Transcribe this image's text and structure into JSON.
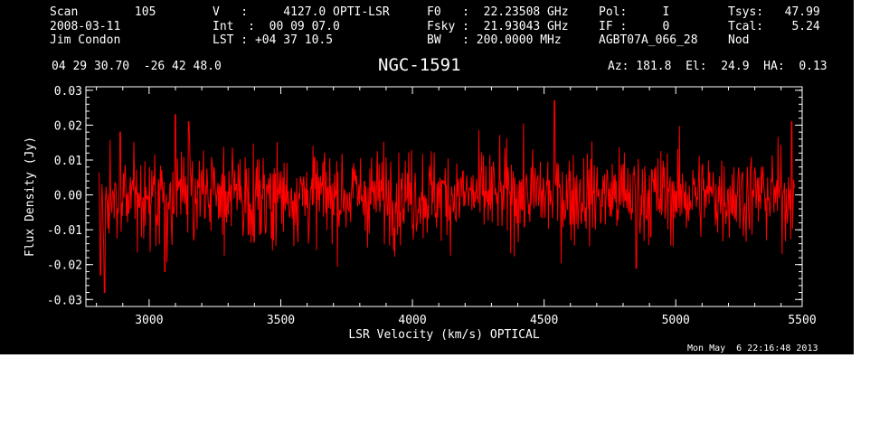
{
  "header": {
    "col1": [
      "Scan        105",
      "2008-03-11",
      "Jim Condon"
    ],
    "col2": [
      "V   :     4127.0 OPTI-LSR",
      "Int  :  00 09 07.0",
      "LST : +04 37 10.5"
    ],
    "col3": [
      "F0   :  22.23508 GHz",
      "Fsky :  21.93043 GHz",
      "BW   : 200.0000 MHz"
    ],
    "col4": [
      "Pol:     I",
      "IF :     0",
      "AGBT07A_066_28"
    ],
    "col5": [
      "Tsys:   47.99",
      "Tcal:    5.24",
      "Nod"
    ],
    "coords": "04 29 30.70  -26 42 48.0",
    "source": "NGC-1591",
    "pointing": "Az: 181.8  El:  24.9  HA:  0.13"
  },
  "footer": {
    "date": "Mon May  6 22:16:48 2013"
  },
  "colors": {
    "background": "#000000",
    "axes": "#ffffff",
    "trace": "#ff0000"
  },
  "chart_data": {
    "type": "line",
    "xlabel": "LSR Velocity (km/s) OPTICAL",
    "ylabel": "Flux Density (Jy)",
    "xlim": [
      2760,
      5480
    ],
    "ylim": [
      -0.032,
      0.031
    ],
    "xticks": [
      3000,
      3500,
      4000,
      4500,
      5000,
      5500
    ],
    "xtick_labels": [
      "3000",
      "3500",
      "4000",
      "4500",
      "5000",
      "5500"
    ],
    "yticks": [
      -0.03,
      -0.02,
      -0.01,
      0.0,
      0.01,
      0.02,
      0.03
    ],
    "ytick_labels": [
      "-0.03",
      "-0.02",
      "-0.01",
      "0.00",
      "0.01",
      "0.02",
      "0.03"
    ],
    "series": [
      {
        "x_start": 2810,
        "x_end": 5450,
        "n_points": 1200,
        "mean": 0.0,
        "rms": 0.0065,
        "min": -0.028,
        "max": 0.027,
        "values_sample": [
          {
            "x": 2815,
            "y": -0.023
          },
          {
            "x": 2830,
            "y": -0.028
          },
          {
            "x": 2890,
            "y": 0.018
          },
          {
            "x": 3060,
            "y": -0.022
          },
          {
            "x": 3100,
            "y": 0.023
          },
          {
            "x": 3150,
            "y": 0.021
          },
          {
            "x": 4540,
            "y": 0.027
          },
          {
            "x": 4850,
            "y": -0.021
          },
          {
            "x": 5440,
            "y": 0.021
          }
        ]
      }
    ]
  }
}
